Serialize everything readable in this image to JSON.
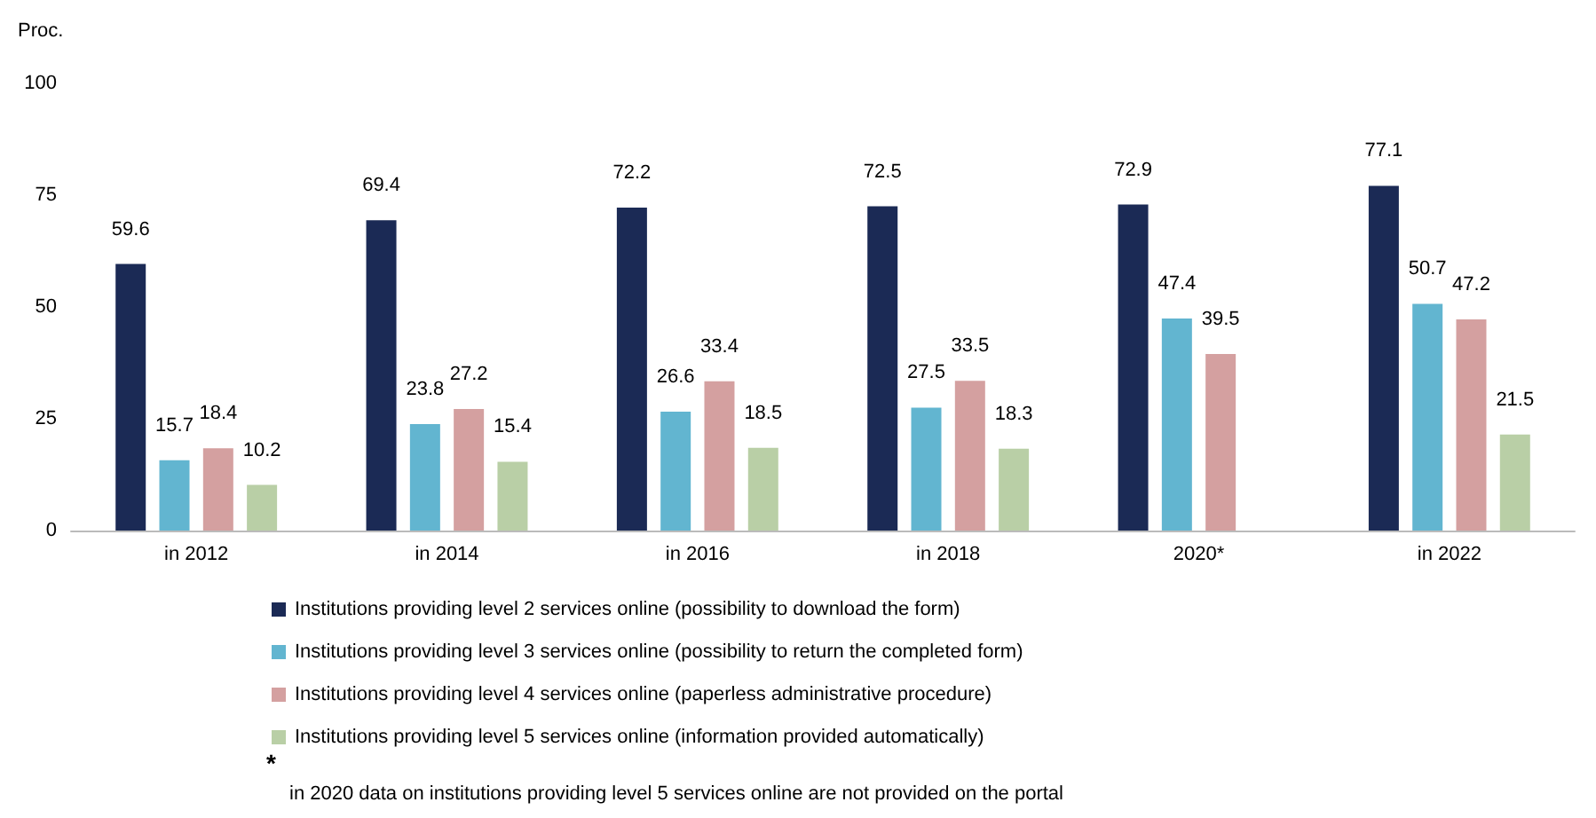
{
  "chart_data": {
    "type": "bar",
    "ylabel": "Proc.",
    "categories": [
      "in 2012",
      "in 2014",
      "in 2016",
      "in 2018",
      "2020*",
      "in 2022"
    ],
    "series": [
      {
        "name": "Institutions providing level 2 services online (possibility to download the form)",
        "color": "#1b2a55",
        "values": [
          59.6,
          69.4,
          72.2,
          72.5,
          72.9,
          77.1
        ]
      },
      {
        "name": "Institutions providing level 3 services online (possibility to return the completed form)",
        "color": "#62b5d0",
        "values": [
          15.7,
          23.8,
          26.6,
          27.5,
          47.4,
          50.7
        ]
      },
      {
        "name": "Institutions providing level 4 services online (paperless administrative procedure)",
        "color": "#d4a0a0",
        "values": [
          18.4,
          27.2,
          33.4,
          33.5,
          39.5,
          47.2
        ]
      },
      {
        "name": "Institutions providing level 5 services online (information provided automatically)",
        "color": "#b9cfa6",
        "values": [
          10.2,
          15.4,
          18.5,
          18.3,
          null,
          21.5
        ]
      }
    ],
    "ylim": [
      0,
      100
    ],
    "yticks": [
      0,
      25,
      50,
      75,
      100
    ],
    "grid": false,
    "legend": "bottom",
    "data_labels": true,
    "annotations": [
      "*",
      "in 2020 data on institutions providing level 5 services online are not provided on the portal"
    ]
  }
}
